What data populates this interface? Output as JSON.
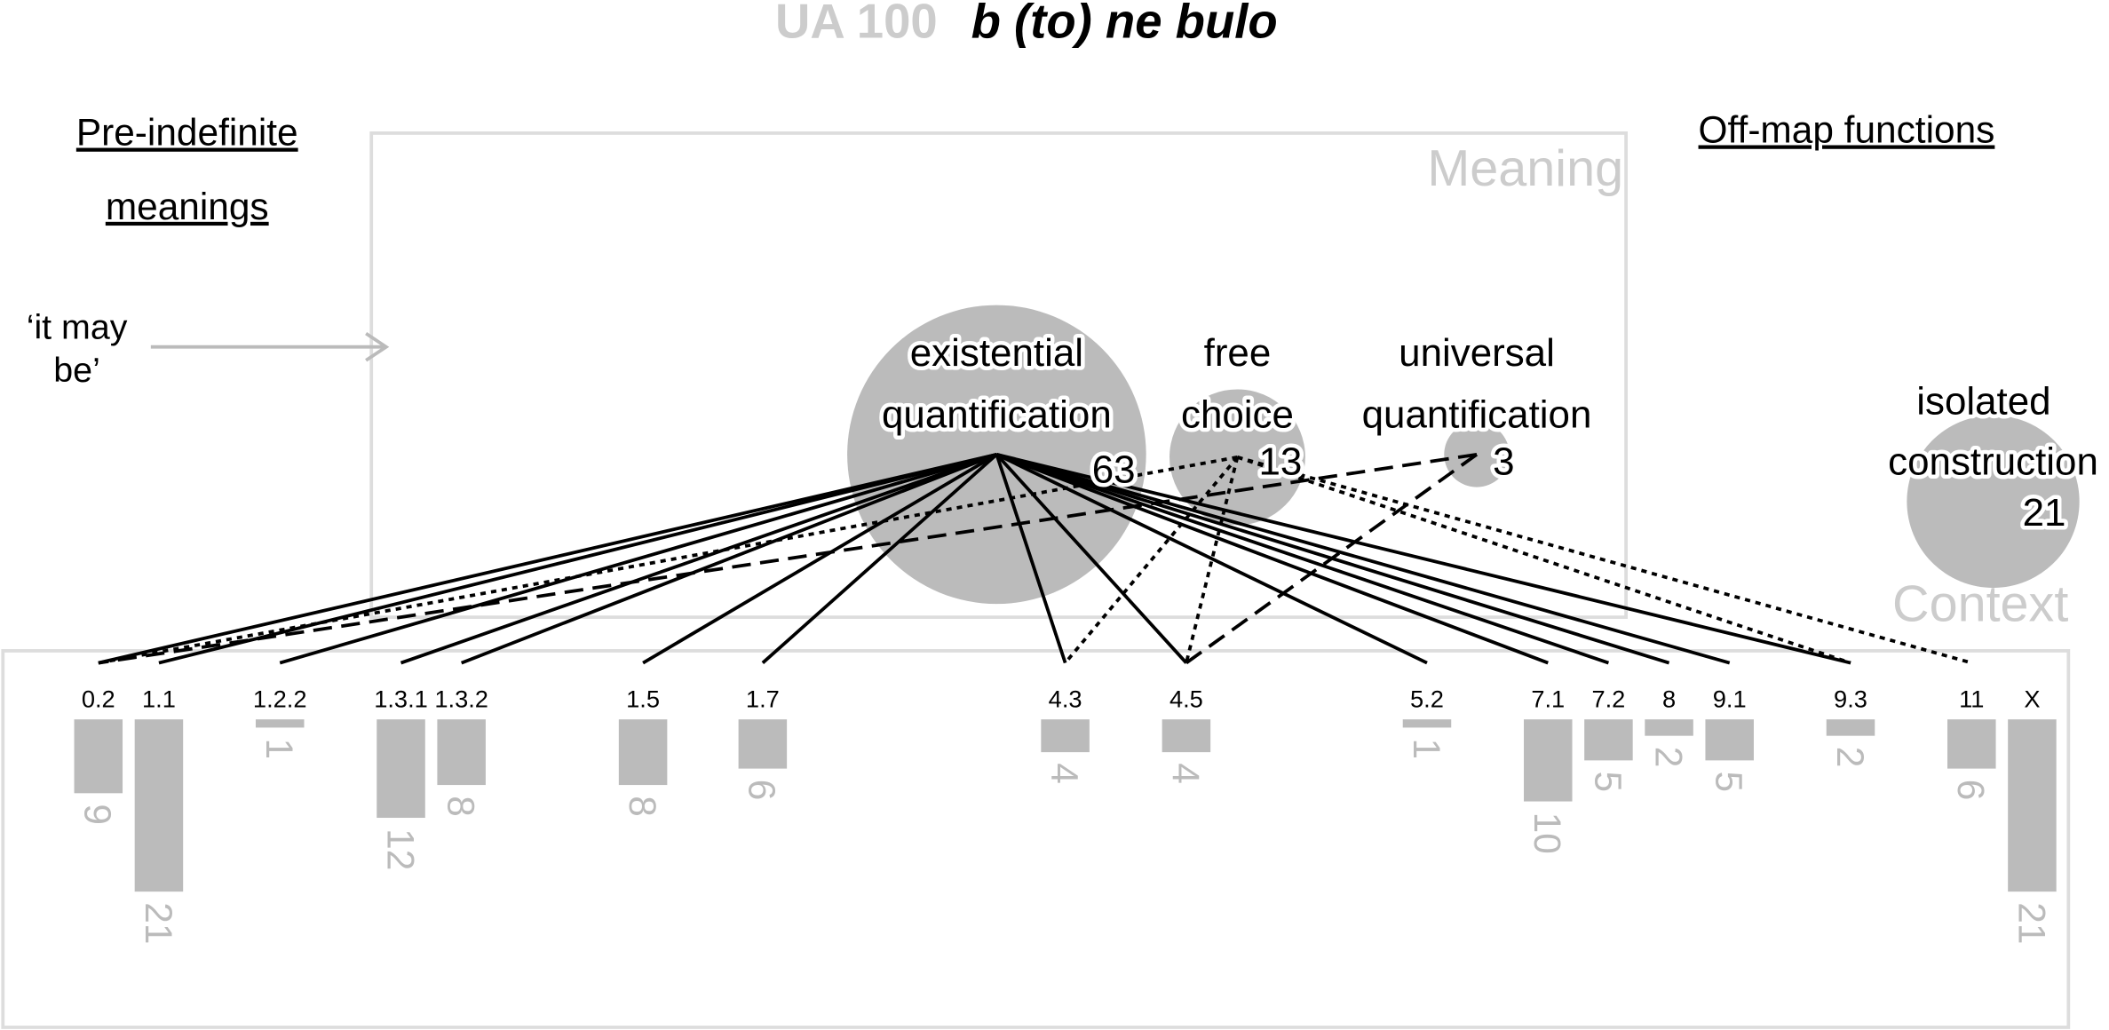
{
  "title": {
    "code": "UA 100",
    "expression": "b (to) ne bulo"
  },
  "left_heading": [
    "Pre-indefinite",
    "meanings"
  ],
  "right_heading": "Off-map functions",
  "pre_indefinite_meaning": [
    "‘it may",
    "be’"
  ],
  "meaning_label": "Meaning",
  "context_label": "Context",
  "nodes": [
    {
      "label": [
        "existential",
        "quantification"
      ],
      "count": 63
    },
    {
      "label": [
        "free",
        "choice"
      ],
      "count": 13
    },
    {
      "label": [
        "universal",
        "quantification"
      ],
      "count": 3
    },
    {
      "label": [
        "isolated",
        "construction"
      ],
      "count": 21
    }
  ],
  "contexts": [
    {
      "label": "0.2",
      "count": 9
    },
    {
      "label": "1.1",
      "count": 21
    },
    {
      "label": "1.2.2",
      "count": 1
    },
    {
      "label": "1.3.1",
      "count": 12
    },
    {
      "label": "1.3.2",
      "count": 8
    },
    {
      "label": "1.5",
      "count": 8
    },
    {
      "label": "1.7",
      "count": 6
    },
    {
      "label": "4.3",
      "count": 4
    },
    {
      "label": "4.5",
      "count": 4
    },
    {
      "label": "5.2",
      "count": 1
    },
    {
      "label": "7.1",
      "count": 10
    },
    {
      "label": "7.2",
      "count": 5
    },
    {
      "label": "8",
      "count": 2
    },
    {
      "label": "9.1",
      "count": 5
    },
    {
      "label": "9.3",
      "count": 2
    },
    {
      "label": "11",
      "count": 6
    },
    {
      "label": "X",
      "count": 21
    }
  ]
}
